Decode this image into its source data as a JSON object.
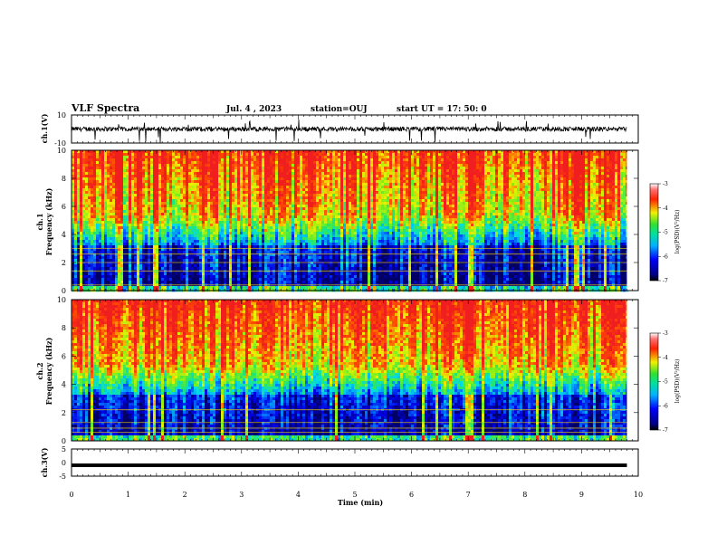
{
  "header": {
    "title": "VLF Spectra",
    "date": "Jul.  4  , 2023",
    "station": "station=OUJ",
    "start_ut": "start  UT  =   17: 50: 0"
  },
  "chart_data": [
    {
      "type": "line",
      "name": "ch1-waveform",
      "ylabel": "ch.1(V)",
      "yticks": [
        "10",
        "-10"
      ],
      "ylim": [
        -10,
        10
      ],
      "description_of_signal": "noisy waveform centred near 0 V, amplitude about ±2 V with sporadic spikes to about -10 V"
    },
    {
      "type": "heatmap",
      "name": "ch1-spectrogram",
      "ylabel_top": "ch.1",
      "ylabel": "Frequency (kHz)",
      "yticks": [
        "0",
        "2",
        "4",
        "6",
        "8",
        "10"
      ],
      "ylim": [
        0,
        10
      ],
      "colorbar": {
        "label": "log(PSD)(V²/Hz)",
        "ticks": [
          "-3",
          "-4",
          "-5",
          "-6",
          "-7"
        ],
        "range": [
          -7,
          -3
        ]
      }
    },
    {
      "type": "heatmap",
      "name": "ch2-spectrogram",
      "ylabel_top": "ch.2",
      "ylabel": "Frequency (kHz)",
      "yticks": [
        "0",
        "2",
        "4",
        "6",
        "8",
        "10"
      ],
      "ylim": [
        0,
        10
      ],
      "colorbar": {
        "label": "log(PSD)(V²/Hz)",
        "ticks": [
          "-3",
          "-4",
          "-5",
          "-6",
          "-7"
        ],
        "range": [
          -7,
          -3
        ]
      }
    },
    {
      "type": "line",
      "name": "ch3-waveform",
      "ylabel": "ch.3(V)",
      "yticks": [
        "5",
        "0",
        "-5"
      ],
      "ylim": [
        -5,
        5
      ],
      "series": [
        {
          "values_constant": -1
        }
      ]
    }
  ],
  "xaxis": {
    "label": "Time  (min)",
    "ticks": [
      "0",
      "1",
      "2",
      "3",
      "4",
      "5",
      "6",
      "7",
      "8",
      "9",
      "10"
    ],
    "xlim": [
      0,
      10
    ],
    "data_end": 9.8
  }
}
